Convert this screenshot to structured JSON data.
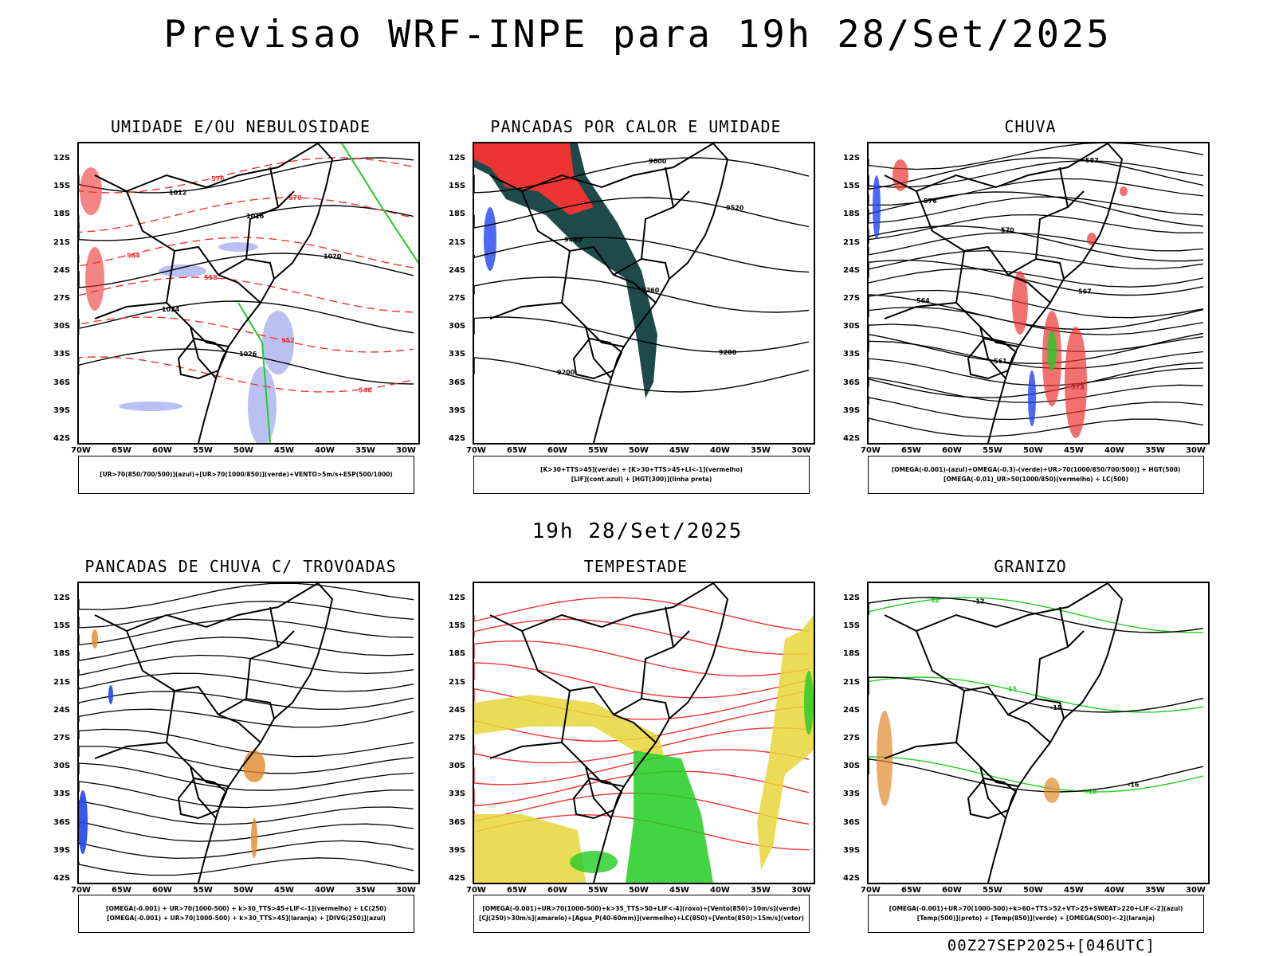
{
  "header": {
    "title": "Previsao WRF-INPE  para 19h 28/Set/2025",
    "mid_time": "19h 28/Set/2025",
    "footer_stamp": "00Z27SEP2025+[046UTC]"
  },
  "axes": {
    "lat_labels": [
      "12S",
      "15S",
      "18S",
      "21S",
      "24S",
      "27S",
      "30S",
      "33S",
      "36S",
      "39S",
      "42S"
    ],
    "lon_labels": [
      "70W",
      "65W",
      "60W",
      "55W",
      "50W",
      "45W",
      "40W",
      "35W",
      "30W"
    ]
  },
  "colors": {
    "blue_shade": "#aab0f0",
    "green": "#22cc22",
    "red": "#ee3333",
    "dark_teal": "#1e4a4a",
    "yellow": "#e6d63a",
    "orange": "#e08a2a",
    "blue": "#2244ee"
  },
  "panels": [
    {
      "title": "UMIDADE E/OU NEBULOSIDADE",
      "legend": [
        "[UR>70(850/700/500)](azul)+[UR>70(1000/850)](verde)+VENTO>5m/s+ESP(500/1000)"
      ],
      "contour_labels": [
        "1012",
        "1016",
        "1020",
        "1024",
        "1026",
        "576",
        "570",
        "564",
        "558",
        "552",
        "546"
      ]
    },
    {
      "title": "PANCADAS POR CALOR E UMIDADE",
      "legend": [
        "[K>30+TTS>45](verde) + [K>30+TTS>45+LI<-1](vermelho)",
        "[LIF](cont.azul) + [HGT(300)](linha preta)"
      ],
      "contour_labels": [
        "9600",
        "9520",
        "9440",
        "9360",
        "9280",
        "9200"
      ]
    },
    {
      "title": "CHUVA",
      "legend": [
        "[OMEGA(-0.001)-(azul)+OMEGA(-0.3)-(verde)+UR>70(1000/850/700/500)] + HGT(500)",
        "[OMEGA(-0.01)_UR>50(1000/850)(vermelho) + LC(500)"
      ],
      "contour_labels": [
        "582",
        "576",
        "570",
        "567",
        "564",
        "561",
        "573"
      ]
    },
    {
      "title": "PANCADAS DE CHUVA C/ TROVOADAS",
      "legend": [
        "[OMEGA(-0.001) + UR>70(1000-500) + k>30_TTS>45+LIF<-1](vermelho) + LC(250)",
        "[OMEGA(-0.001) + UR>70(1000-500) + k>30_TTS>45](laranja) + [DIVG(250)](azul)"
      ],
      "contour_labels": []
    },
    {
      "title": "TEMPESTADE",
      "legend": [
        "[OMEGA(-0.001)+UR>70(1000-500)+k>35_TTS>50+LIF<-4](roxo)+[Vento(850)>10m/s](verde)",
        "[CJ(250)>30m/s](amarelo)+[Agua_P(40-60mm)](vermelho)+LC(850)+[Vento(850)>15m/s](vetor)"
      ],
      "contour_labels": []
    },
    {
      "title": "GRANIZO",
      "legend": [
        "[OMEGA(-0.001)+UR>70(1000-500)+k>60+TTS>52+VT>25+SWEAT>220+LIF<-2](azul)",
        "[Temp(500)](preto) + [Temp(850)](verde) + [OMEGA(500)<-2](laranja)"
      ],
      "contour_labels": [
        "-12",
        "-15",
        "-16",
        "12",
        "15",
        "-18"
      ]
    }
  ]
}
